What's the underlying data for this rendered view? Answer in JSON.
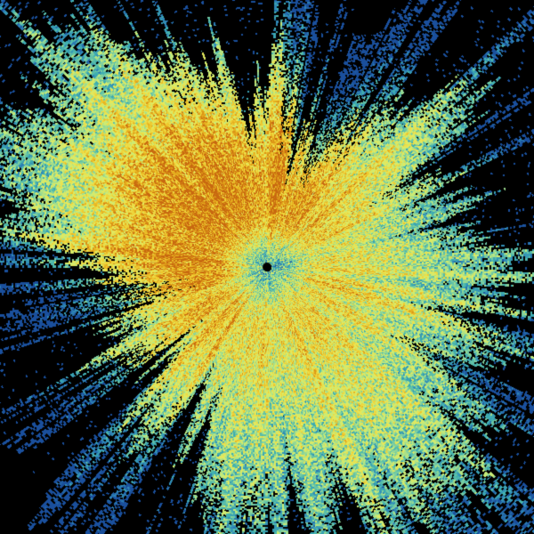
{
  "image": {
    "background": "#000000",
    "colormap": [
      "#1a4f9c",
      "#2f86b8",
      "#3fb0b0",
      "#7fd0a0",
      "#c8ec78",
      "#e8e858",
      "#f0cc30",
      "#e0a018",
      "#c86810"
    ]
  }
}
